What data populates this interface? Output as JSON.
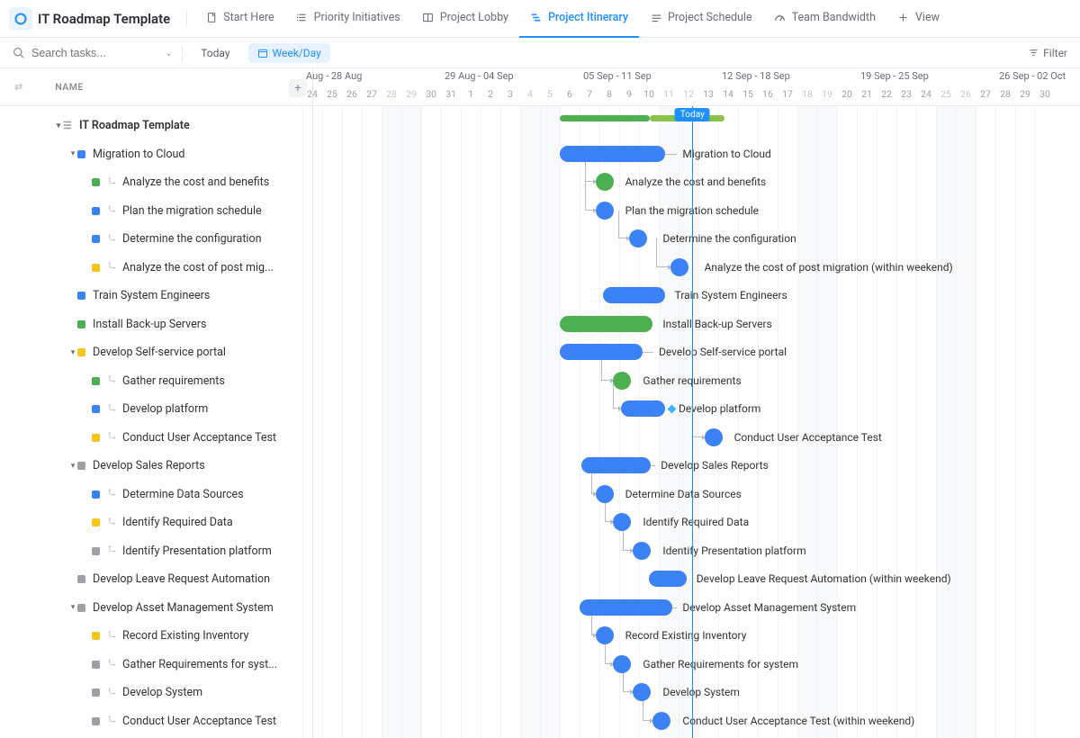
{
  "colors": {
    "blue": "#3b82f6",
    "green": "#4caf50",
    "yellow": "#f5c518",
    "grey": "#9aa0a6",
    "accent": "#1e90ff",
    "lightblue_bg": "#e6f2ff"
  },
  "header": {
    "title": "IT Roadmap Template",
    "tabs": [
      {
        "label": "Start Here",
        "icon": "doc"
      },
      {
        "label": "Priority Initiatives",
        "icon": "list"
      },
      {
        "label": "Project Lobby",
        "icon": "board"
      },
      {
        "label": "Project Itinerary",
        "icon": "gantt",
        "active": true
      },
      {
        "label": "Project Schedule",
        "icon": "cal"
      },
      {
        "label": "Team Bandwidth",
        "icon": "gauge"
      },
      {
        "label": "View",
        "icon": "plus"
      }
    ]
  },
  "toolbar": {
    "search_placeholder": "Search tasks...",
    "today_label": "Today",
    "weekday_label": "Week/Day",
    "filter_label": "Filter"
  },
  "sidebar": {
    "name_header": "NAME"
  },
  "timeline": {
    "day_width": 22,
    "start_day_index": 0,
    "weeks": [
      {
        "label": "Aug - 28 Aug",
        "at_day": 0
      },
      {
        "label": "29 Aug - 04 Sep",
        "at_day": 7
      },
      {
        "label": "05 Sep - 11 Sep",
        "at_day": 14
      },
      {
        "label": "12 Sep - 18 Sep",
        "at_day": 21
      },
      {
        "label": "19 Sep - 25 Sep",
        "at_day": 28
      },
      {
        "label": "26 Sep - 02 Oct",
        "at_day": 35
      }
    ],
    "days": [
      "24",
      "25",
      "26",
      "27",
      "28",
      "29",
      "30",
      "31",
      "1",
      "2",
      "3",
      "4",
      "5",
      "6",
      "7",
      "8",
      "9",
      "10",
      "11",
      "12",
      "13",
      "14",
      "15",
      "16",
      "17",
      "18",
      "19",
      "20",
      "21",
      "22",
      "23",
      "24",
      "25",
      "26",
      "27",
      "28",
      "29",
      "30"
    ],
    "weekend_indices": [
      4,
      5,
      11,
      12,
      18,
      19,
      25,
      26,
      32,
      33
    ],
    "today_day_index": 19.2,
    "today_label": "Today",
    "summary": {
      "start": 13,
      "end": 21.3,
      "left_color": "#4caf50",
      "right_color": "#8bc34a",
      "split": 0.55
    }
  },
  "tree": [
    {
      "indent": 0,
      "caret": true,
      "icon": "list",
      "label": "IT Roadmap Template",
      "bold": true
    },
    {
      "indent": 1,
      "caret": true,
      "sq": "#3b82f6",
      "label": "Migration to Cloud"
    },
    {
      "indent": 2,
      "sq": "#4caf50",
      "sub": true,
      "label": "Analyze the cost and benefits"
    },
    {
      "indent": 2,
      "sq": "#3b82f6",
      "sub": true,
      "label": "Plan the migration schedule"
    },
    {
      "indent": 2,
      "sq": "#3b82f6",
      "sub": true,
      "label": "Determine the configuration"
    },
    {
      "indent": 2,
      "sq": "#f5c518",
      "sub": true,
      "label": "Analyze the cost of post mig..."
    },
    {
      "indent": 1,
      "sq": "#3b82f6",
      "label": "Train System Engineers"
    },
    {
      "indent": 1,
      "sq": "#4caf50",
      "label": "Install Back-up Servers"
    },
    {
      "indent": 1,
      "caret": true,
      "sq": "#f5c518",
      "label": "Develop Self-service portal"
    },
    {
      "indent": 2,
      "sq": "#4caf50",
      "sub": true,
      "label": "Gather requirements"
    },
    {
      "indent": 2,
      "sq": "#3b82f6",
      "sub": true,
      "label": "Develop platform"
    },
    {
      "indent": 2,
      "sq": "#f5c518",
      "sub": true,
      "label": "Conduct User Acceptance Test"
    },
    {
      "indent": 1,
      "caret": true,
      "sq": "#9aa0a6",
      "label": "Develop Sales Reports"
    },
    {
      "indent": 2,
      "sq": "#3b82f6",
      "sub": true,
      "label": "Determine Data Sources"
    },
    {
      "indent": 2,
      "sq": "#f5c518",
      "sub": true,
      "label": "Identify Required Data"
    },
    {
      "indent": 2,
      "sq": "#9aa0a6",
      "sub": true,
      "label": "Identify Presentation platform"
    },
    {
      "indent": 1,
      "sq": "#9aa0a6",
      "label": "Develop Leave Request Automation"
    },
    {
      "indent": 1,
      "caret": true,
      "sq": "#9aa0a6",
      "label": "Develop Asset Management System"
    },
    {
      "indent": 2,
      "sq": "#f5c518",
      "sub": true,
      "label": "Record Existing Inventory"
    },
    {
      "indent": 2,
      "sq": "#9aa0a6",
      "sub": true,
      "label": "Gather Requirements for syst..."
    },
    {
      "indent": 2,
      "sq": "#9aa0a6",
      "sub": true,
      "label": "Develop System"
    },
    {
      "indent": 2,
      "sq": "#9aa0a6",
      "sub": true,
      "label": "Conduct User Acceptance Test"
    }
  ],
  "gantt": [
    {
      "row": 1,
      "type": "bar",
      "start": 13.0,
      "end": 18.3,
      "color": "#3b82f6",
      "label": "Migration to Cloud",
      "label_at": 19.2,
      "tail": true
    },
    {
      "row": 2,
      "type": "circle",
      "at": 14.8,
      "color": "#4caf50",
      "label": "Analyze the cost and benefits",
      "label_at": 16.3,
      "dep_from_row": 1,
      "dep_from_x": 14.0
    },
    {
      "row": 3,
      "type": "circle",
      "at": 14.8,
      "color": "#3b82f6",
      "label": "Plan the migration schedule",
      "label_at": 16.3,
      "dep_from_row": 2,
      "dep_from_x": 14.0
    },
    {
      "row": 4,
      "type": "circle",
      "at": 16.5,
      "color": "#3b82f6",
      "label": "Determine the configuration",
      "label_at": 18.2,
      "dep_from_row": 3,
      "dep_from_x": 15.7
    },
    {
      "row": 5,
      "type": "circle",
      "at": 18.6,
      "color": "#3b82f6",
      "label": "Analyze the cost of post migration (within weekend)",
      "label_at": 20.3,
      "dep_from_row": 4,
      "dep_from_x": 17.6
    },
    {
      "row": 6,
      "type": "bar",
      "start": 15.2,
      "end": 18.3,
      "color": "#3b82f6",
      "label": "Train System Engineers",
      "label_at": 18.8
    },
    {
      "row": 7,
      "type": "bar",
      "start": 13.0,
      "end": 17.7,
      "color": "#4caf50",
      "label": "Install Back-up Servers",
      "label_at": 18.2
    },
    {
      "row": 8,
      "type": "bar",
      "start": 13.0,
      "end": 17.2,
      "color": "#3b82f6",
      "label": "Develop Self-service portal",
      "label_at": 18.0,
      "tail": true
    },
    {
      "row": 9,
      "type": "circle",
      "at": 15.7,
      "color": "#4caf50",
      "label": "Gather requirements",
      "label_at": 17.2,
      "dep_from_row": 8,
      "dep_from_x": 14.8
    },
    {
      "row": 10,
      "type": "bar",
      "start": 16.1,
      "end": 18.3,
      "color": "#3b82f6",
      "label": "Develop platform",
      "label_at": 19.0,
      "dep_from_row": 9,
      "dep_from_x": 15.4,
      "diamond_at": 18.5
    },
    {
      "row": 11,
      "type": "circle",
      "at": 20.3,
      "color": "#3b82f6",
      "label": "Conduct User Acceptance Test",
      "label_at": 21.8,
      "dep_from_row": 10,
      "dep_from_x": 19.4
    },
    {
      "row": 12,
      "type": "bar",
      "start": 14.1,
      "end": 17.6,
      "color": "#3b82f6",
      "label": "Develop Sales Reports",
      "label_at": 18.1,
      "tail": true
    },
    {
      "row": 13,
      "type": "circle",
      "at": 14.8,
      "color": "#3b82f6",
      "label": "Determine Data Sources",
      "label_at": 16.3,
      "dep_from_row": 12,
      "dep_from_x": 14.3
    },
    {
      "row": 14,
      "type": "circle",
      "at": 15.7,
      "color": "#3b82f6",
      "label": "Identify Required Data",
      "label_at": 17.2,
      "dep_from_row": 13,
      "dep_from_x": 15.0
    },
    {
      "row": 15,
      "type": "circle",
      "at": 16.7,
      "color": "#3b82f6",
      "label": "Identify Presentation platform",
      "label_at": 18.2,
      "dep_from_row": 14,
      "dep_from_x": 15.9
    },
    {
      "row": 16,
      "type": "bar",
      "start": 17.5,
      "end": 19.4,
      "color": "#3b82f6",
      "label": "Develop Leave Request Automation (within weekend)",
      "label_at": 19.9
    },
    {
      "row": 17,
      "type": "bar",
      "start": 14.0,
      "end": 18.7,
      "color": "#3b82f6",
      "label": "Develop Asset Management System",
      "label_at": 19.2,
      "tail": true
    },
    {
      "row": 18,
      "type": "circle",
      "at": 14.8,
      "color": "#3b82f6",
      "label": "Record Existing Inventory",
      "label_at": 16.3,
      "dep_from_row": 17,
      "dep_from_x": 14.3
    },
    {
      "row": 19,
      "type": "circle",
      "at": 15.7,
      "color": "#3b82f6",
      "label": "Gather Requirements for system",
      "label_at": 17.2,
      "dep_from_row": 18,
      "dep_from_x": 15.0
    },
    {
      "row": 20,
      "type": "circle",
      "at": 16.7,
      "color": "#3b82f6",
      "label": "Develop System",
      "label_at": 18.2,
      "dep_from_row": 19,
      "dep_from_x": 15.9
    },
    {
      "row": 21,
      "type": "circle",
      "at": 17.7,
      "color": "#3b82f6",
      "label": "Conduct User Acceptance Test (within weekend)",
      "label_at": 19.2,
      "dep_from_row": 20,
      "dep_from_x": 16.9
    }
  ]
}
